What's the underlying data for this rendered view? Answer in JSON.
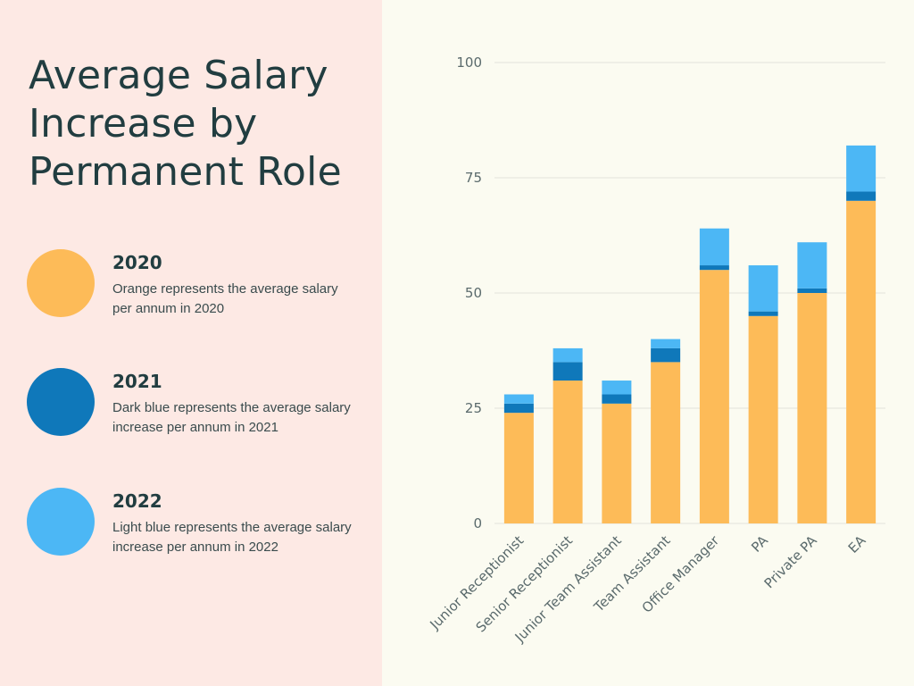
{
  "title": "Average Salary Increase by Permanent Role",
  "legend": [
    {
      "year": "2020",
      "color": "#fdbb58",
      "description": "Orange represents the average salary per annum  in 2020"
    },
    {
      "year": "2021",
      "color": "#0f78ba",
      "description": "Dark blue represents the average salary increase per annum in 2021"
    },
    {
      "year": "2022",
      "color": "#4cb7f5",
      "description": "Light blue represents the average salary increase per annum in 2022"
    }
  ],
  "chart_data": {
    "type": "bar",
    "stacked": true,
    "title": "Average Salary Increase by Permanent Role",
    "xlabel": "",
    "ylabel": "",
    "ylim": [
      0,
      100
    ],
    "yticks": [
      0,
      25,
      50,
      75,
      100
    ],
    "grid": true,
    "categories": [
      "Junior Receptionist",
      "Senior Receptionist",
      "Junior Team Assistant",
      "Team Assistant",
      "Office Manager",
      "PA",
      "Private PA",
      "EA"
    ],
    "series": [
      {
        "name": "2020",
        "color": "#fdbb58",
        "values": [
          24,
          31,
          26,
          35,
          55,
          45,
          50,
          70
        ]
      },
      {
        "name": "2021",
        "color": "#0f78ba",
        "values": [
          2,
          4,
          2,
          3,
          1,
          1,
          1,
          2
        ]
      },
      {
        "name": "2022",
        "color": "#4cb7f5",
        "values": [
          2,
          3,
          3,
          2,
          8,
          10,
          10,
          10
        ]
      }
    ]
  }
}
